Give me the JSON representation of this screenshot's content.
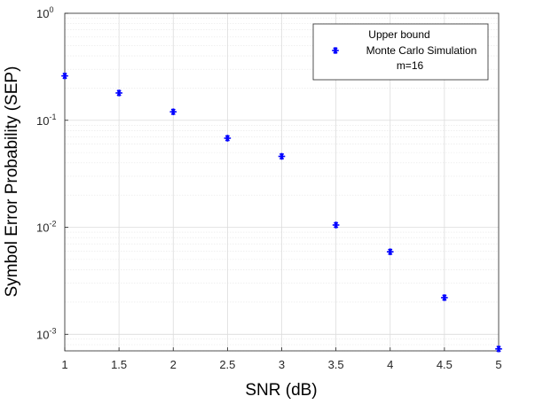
{
  "chart_data": {
    "type": "scatter",
    "xlabel": "SNR (dB)",
    "ylabel": "Symbol Error Probability (SEP)",
    "xlim": [
      1,
      5
    ],
    "ylim": [
      0.0007,
      1
    ],
    "yscale": "log",
    "grid": true,
    "x_ticks": [
      "1",
      "1.5",
      "2",
      "2.5",
      "3",
      "3.5",
      "4",
      "4.5",
      "5"
    ],
    "y_ticks": [
      {
        "base": "10",
        "exp": "0"
      },
      {
        "base": "10",
        "exp": "-1"
      },
      {
        "base": "10",
        "exp": "-2"
      },
      {
        "base": "10",
        "exp": "-3"
      }
    ],
    "legend": {
      "placement": "top-right",
      "entries": [
        "Upper bound",
        "Monte Carlo Simulation",
        "m=16"
      ]
    },
    "series": [
      {
        "name": "Monte Carlo Simulation",
        "marker": "asterisk",
        "color": "#0000ff",
        "x": [
          1,
          1.5,
          2,
          2.5,
          3,
          3.5,
          4,
          4.5,
          5
        ],
        "y": [
          0.26,
          0.18,
          0.12,
          0.068,
          0.046,
          0.0105,
          0.0059,
          0.0022,
          0.00073
        ]
      }
    ]
  }
}
